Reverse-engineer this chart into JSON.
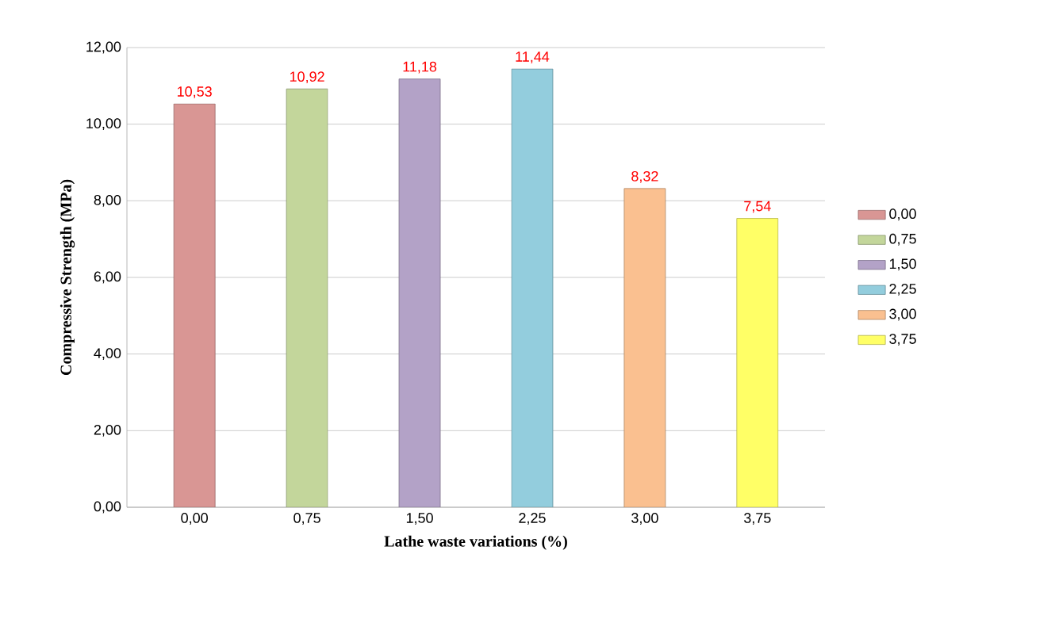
{
  "chart_data": {
    "type": "bar",
    "xlabel": "Lathe waste variations (%)",
    "ylabel": "Compressive Strength (MPa)",
    "categories": [
      "0,00",
      "0,75",
      "1,50",
      "2,25",
      "3,00",
      "3,75"
    ],
    "series": [
      {
        "name": "0,00",
        "color": "#d99694",
        "values": [
          10.53,
          null,
          null,
          null,
          null,
          null
        ],
        "value_labels": [
          "10,53",
          null,
          null,
          null,
          null,
          null
        ]
      },
      {
        "name": "0,75",
        "color": "#c3d69b",
        "values": [
          null,
          10.92,
          null,
          null,
          null,
          null
        ],
        "value_labels": [
          null,
          "10,92",
          null,
          null,
          null,
          null
        ]
      },
      {
        "name": "1,50",
        "color": "#b3a2c7",
        "values": [
          null,
          null,
          11.18,
          null,
          null,
          null
        ],
        "value_labels": [
          null,
          null,
          "11,18",
          null,
          null,
          null
        ]
      },
      {
        "name": "2,25",
        "color": "#93cddd",
        "values": [
          null,
          null,
          null,
          11.44,
          null,
          null
        ],
        "value_labels": [
          null,
          null,
          null,
          "11,44",
          null,
          null
        ]
      },
      {
        "name": "3,00",
        "color": "#fac090",
        "values": [
          null,
          null,
          null,
          null,
          8.32,
          null
        ],
        "value_labels": [
          null,
          null,
          null,
          null,
          "8,32",
          null
        ]
      },
      {
        "name": "3,75",
        "color": "#ffff66",
        "values": [
          null,
          null,
          null,
          null,
          null,
          7.54
        ],
        "value_labels": [
          null,
          null,
          null,
          null,
          null,
          "7,54"
        ]
      }
    ],
    "ylim": [
      0,
      12
    ],
    "yticks": [
      {
        "value": 0,
        "label": "0,00"
      },
      {
        "value": 2,
        "label": "2,00"
      },
      {
        "value": 4,
        "label": "4,00"
      },
      {
        "value": 6,
        "label": "6,00"
      },
      {
        "value": 8,
        "label": "8,00"
      },
      {
        "value": 10,
        "label": "10,00"
      },
      {
        "value": 12,
        "label": "12,00"
      }
    ],
    "grid": "y",
    "legend": "right"
  }
}
